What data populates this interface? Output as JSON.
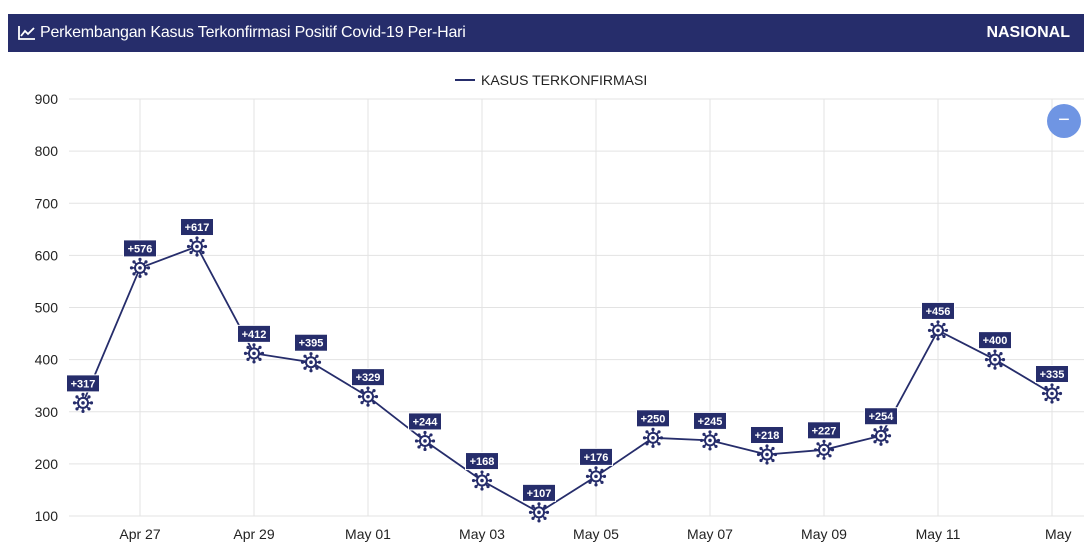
{
  "header": {
    "title": "Perkembangan Kasus Terkonfirmasi Positif Covid-19 Per-Hari",
    "scope": "NASIONAL",
    "icon": "line-chart-icon"
  },
  "controls": {
    "collapse_symbol": "−"
  },
  "colors": {
    "header_bg": "#262d6b",
    "series": "#262d6b",
    "label_bg": "#262d6b",
    "button": "#6f95e3"
  },
  "chart_data": {
    "type": "line",
    "legend": "top-center",
    "grid": true,
    "x": [
      "Apr 26",
      "Apr 27",
      "Apr 28",
      "Apr 29",
      "Apr 30",
      "May 01",
      "May 02",
      "May 03",
      "May 04",
      "May 05",
      "May 06",
      "May 07",
      "May 08",
      "May 09",
      "May 10",
      "May 11",
      "May 12",
      "May 13"
    ],
    "x_tick_labels": [
      "Apr 27",
      "Apr 29",
      "May 01",
      "May 03",
      "May 05",
      "May 07",
      "May 09",
      "May 11",
      "May"
    ],
    "ylim": [
      100,
      900
    ],
    "y_ticks": [
      100,
      200,
      300,
      400,
      500,
      600,
      700,
      800,
      900
    ],
    "series": [
      {
        "name": "KASUS TERKONFIRMASI",
        "values": [
          317,
          576,
          617,
          412,
          395,
          329,
          244,
          168,
          107,
          176,
          250,
          245,
          218,
          227,
          254,
          456,
          400,
          335
        ],
        "labels": [
          "+317",
          "+576",
          "+617",
          "+412",
          "+395",
          "+329",
          "+244",
          "+168",
          "+107",
          "+176",
          "+250",
          "+245",
          "+218",
          "+227",
          "+254",
          "+456",
          "+400",
          "+335"
        ],
        "marker": "virus-icon"
      }
    ]
  }
}
